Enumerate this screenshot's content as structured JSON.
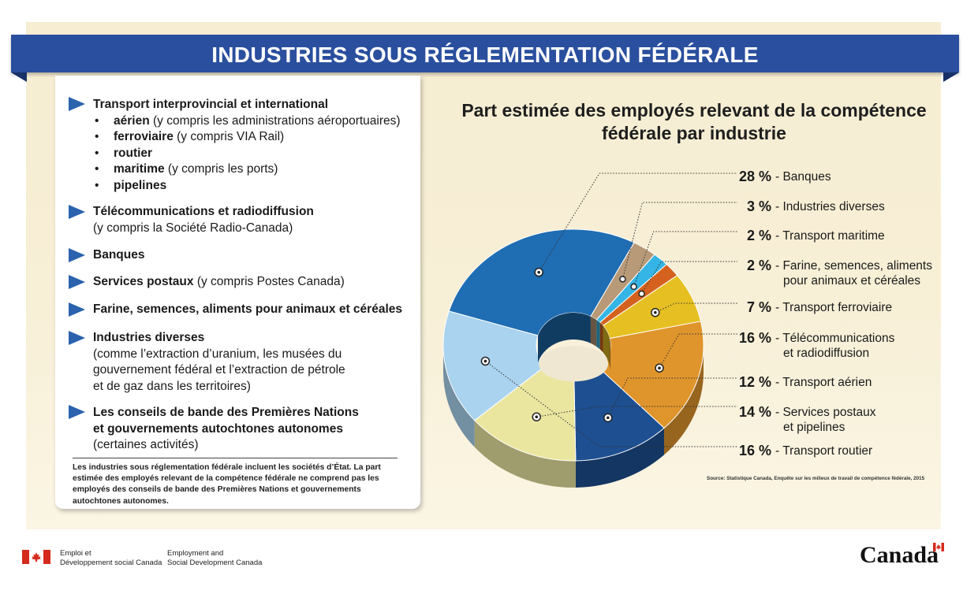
{
  "banner": {
    "title": "INDUSTRIES SOUS RÉGLEMENTATION FÉDÉRALE"
  },
  "list": {
    "transport": {
      "heading": "Transport interprovincial et international",
      "modes": [
        {
          "bullet": "•",
          "name": "aérien",
          "detail": " (y compris les administrations aéroportuaires)"
        },
        {
          "bullet": "•",
          "name": "ferroviaire",
          "detail": " (y compris VIA Rail)"
        },
        {
          "bullet": "•",
          "name": "routier",
          "detail": ""
        },
        {
          "bullet": "•",
          "name": "maritime",
          "detail": " (y compris les ports)"
        },
        {
          "bullet": "•",
          "name": "pipelines",
          "detail": ""
        }
      ]
    },
    "telecom": {
      "heading": "Télécommunications et radiodiffusion",
      "detail": "(y compris la Société Radio-Canada)"
    },
    "banques": {
      "heading": "Banques"
    },
    "postaux": {
      "heading": "Services postaux",
      "detail": " (y compris Postes Canada)"
    },
    "farine": {
      "heading": "Farine, semences, aliments pour animaux et céréales"
    },
    "diverses": {
      "heading": "Industries diverses",
      "detail1": "(comme l’extraction d’uranium, les musées du",
      "detail2": "gouvernement fédéral et l’extraction de pétrole",
      "detail3": "et de gaz dans les territoires)"
    },
    "conseils": {
      "heading1": "Les conseils de bande des Premières Nations",
      "heading2": "et gouvernements autochtones autonomes",
      "detail": "(certaines activités)"
    },
    "note": "Les industries sous réglementation fédérale incluent les sociétés d’État. La part estimée des employés relevant de la compétence fédérale ne comprend pas les employés des conseils de bande des Premières Nations et gouvernements autochtones autonomes."
  },
  "chart_data": {
    "type": "pie",
    "variant": "3d-donut",
    "title": "Part estimée des employés relevant de la compétence fédérale par industrie",
    "unit": "%",
    "slices": [
      {
        "label": "Banques",
        "label2": "",
        "value": 28,
        "display": "28 %",
        "color": "#1f6db3"
      },
      {
        "label": "Industries diverses",
        "label2": "",
        "value": 3,
        "display": "3 %",
        "color": "#b89a78"
      },
      {
        "label": "Transport maritime",
        "label2": "",
        "value": 2,
        "display": "2 %",
        "color": "#35b5e5"
      },
      {
        "label": "Farine, semences, aliments",
        "label2": "pour animaux et céréales",
        "value": 2,
        "display": "2 %",
        "color": "#d4621e"
      },
      {
        "label": "Transport ferroviaire",
        "label2": "",
        "value": 7,
        "display": "7 %",
        "color": "#e6c022"
      },
      {
        "label": "Télécommunications",
        "label2": "et radiodiffusion",
        "value": 16,
        "display": "16 %",
        "color": "#e0952c"
      },
      {
        "label": "Transport aérien",
        "label2": "",
        "value": 12,
        "display": "12 %",
        "color": "#1d4f91"
      },
      {
        "label": "Services postaux",
        "label2": "et pipelines",
        "value": 14,
        "display": "14 %",
        "color": "#eae6a0"
      },
      {
        "label": "Transport routier",
        "label2": "",
        "value": 16,
        "display": "16 %",
        "color": "#a9d3ee"
      }
    ],
    "source": "Source: Statistique Canada, Enquête sur les milieux de travail de compétence fédérale, 2015"
  },
  "footer": {
    "fr_line1": "Emploi et",
    "fr_line2": "Développement social Canada",
    "en_line1": "Employment and",
    "en_line2": "Social Development Canada",
    "wordmark": "Canada"
  },
  "colors": {
    "banner": "#2a4f9e",
    "arrow": "#2a62ad",
    "flag": "#d52b1e"
  }
}
